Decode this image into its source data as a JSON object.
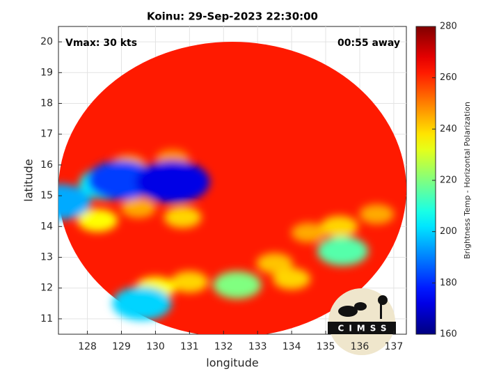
{
  "chart_data": {
    "type": "heatmap",
    "title": "Koinu: 29-Sep-2023 22:30:00",
    "annotations": [
      "Vmax: 30 kts",
      "00:55 away"
    ],
    "xlabel": "longitude",
    "ylabel": "latitude",
    "colorbar_label": "Brightness Temp - Horizontal Polarization",
    "logo": "CIMSS",
    "colormap": "jet",
    "background_value": 262,
    "clim": [
      160,
      280
    ],
    "cticks": [
      160,
      180,
      200,
      220,
      240,
      260,
      280
    ],
    "xlim": [
      127.15,
      137.37
    ],
    "ylim": [
      10.5,
      20.5
    ],
    "xticks": [
      128,
      129,
      130,
      131,
      132,
      133,
      134,
      135,
      136,
      137
    ],
    "yticks": [
      11,
      12,
      13,
      14,
      15,
      16,
      17,
      18,
      19,
      20
    ],
    "grid": true,
    "cells": [
      {
        "lon": 129.5,
        "lat": 14.6,
        "value": 245
      },
      {
        "lon": 130.8,
        "lat": 14.3,
        "value": 240
      },
      {
        "lon": 129.2,
        "lat": 16.0,
        "value": 245
      },
      {
        "lon": 130.5,
        "lat": 16.2,
        "value": 248
      },
      {
        "lon": 133.5,
        "lat": 12.8,
        "value": 242
      },
      {
        "lon": 134.5,
        "lat": 13.8,
        "value": 245
      },
      {
        "lon": 135.4,
        "lat": 14.0,
        "value": 240
      },
      {
        "lon": 131.0,
        "lat": 12.2,
        "value": 240
      },
      {
        "lon": 130.0,
        "lat": 12.0,
        "value": 235
      },
      {
        "lon": 134.0,
        "lat": 12.3,
        "value": 240
      },
      {
        "lon": 136.5,
        "lat": 14.4,
        "value": 245
      },
      {
        "lon": 128.3,
        "lat": 14.2,
        "value": 235
      },
      {
        "lon": 132.4,
        "lat": 12.1,
        "value": 220
      },
      {
        "lon": 135.5,
        "lat": 13.2,
        "value": 215
      },
      {
        "lon": 128.6,
        "lat": 15.4,
        "value": 205
      },
      {
        "lon": 130.3,
        "lat": 15.4,
        "value": 205
      },
      {
        "lon": 129.6,
        "lat": 11.5,
        "value": 200
      },
      {
        "lon": 127.2,
        "lat": 14.8,
        "value": 195
      },
      {
        "lon": 129.0,
        "lat": 15.5,
        "value": 182
      },
      {
        "lon": 130.5,
        "lat": 15.45,
        "value": 172
      }
    ]
  }
}
